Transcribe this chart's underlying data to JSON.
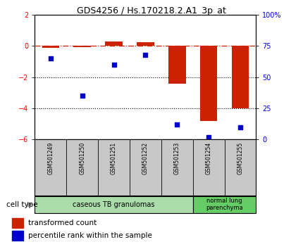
{
  "title": "GDS4256 / Hs.170218.2.A1_3p_at",
  "samples": [
    "GSM501249",
    "GSM501250",
    "GSM501251",
    "GSM501252",
    "GSM501253",
    "GSM501254",
    "GSM501255"
  ],
  "transformed_count": [
    -0.1,
    -0.05,
    0.3,
    0.25,
    -2.4,
    -4.8,
    -4.0
  ],
  "percentile_rank": [
    65,
    35,
    60,
    68,
    12,
    2,
    10
  ],
  "ylim_left": [
    -6,
    2
  ],
  "ylim_right": [
    0,
    100
  ],
  "yticks_left": [
    -6,
    -4,
    -2,
    0,
    2
  ],
  "yticks_right": [
    0,
    25,
    50,
    75,
    100
  ],
  "ytick_labels_right": [
    "0",
    "25",
    "50",
    "75",
    "100%"
  ],
  "bar_color": "#CC2200",
  "scatter_color": "#0000CC",
  "dotted_lines": [
    -2,
    -4
  ],
  "group1_label": "caseous TB granulomas",
  "group1_color": "#AADDAA",
  "group1_samples": 5,
  "group2_label": "normal lung\nparenchyma",
  "group2_color": "#66CC66",
  "group2_samples": 2,
  "cell_type_label": "cell type",
  "legend_red_label": "transformed count",
  "legend_blue_label": "percentile rank within the sample",
  "background_color": "#FFFFFF",
  "bar_width": 0.55,
  "figsize": [
    4.3,
    3.54
  ],
  "dpi": 100
}
